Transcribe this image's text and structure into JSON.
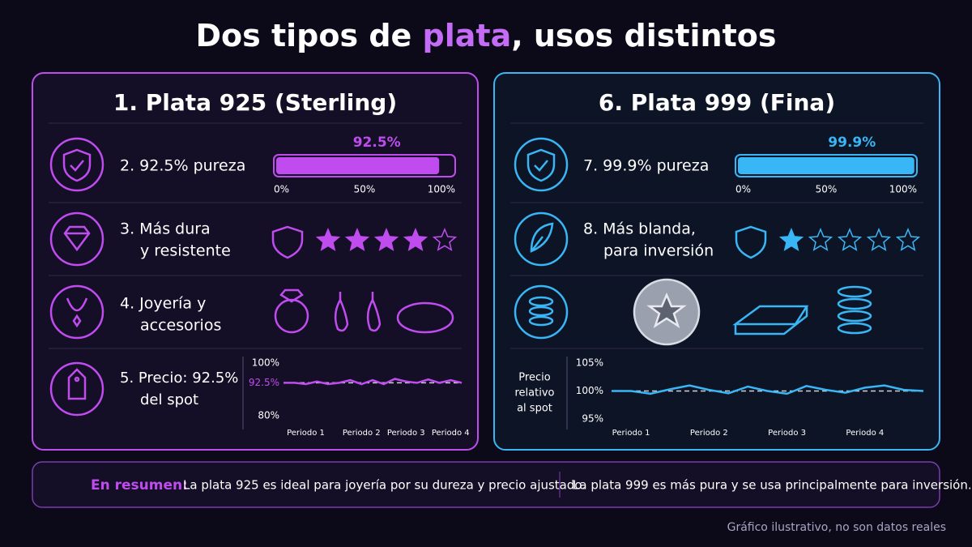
{
  "title": {
    "before": "Dos tipos de ",
    "highlight": "plata",
    "after": ", usos distintos"
  },
  "panels": [
    {
      "title": "1. Plata 925 (Sterling)",
      "color": "#c04cf0",
      "purity": {
        "label": "2. 92.5% pureza",
        "value": 92.5,
        "value_label": "92.5%",
        "xlim": [
          0,
          100
        ],
        "xticks": [
          {
            "value": 0,
            "label": "0%"
          },
          {
            "value": 50,
            "label": "50%"
          },
          {
            "value": 100,
            "label": "100%"
          }
        ]
      },
      "hardness": {
        "label": [
          "3. Más dura",
          "y resistente"
        ],
        "stars": 4,
        "max_stars": 5
      },
      "use": {
        "label": [
          "4. Joyería y",
          "accesorios"
        ]
      },
      "price": {
        "label": [
          "5. Precio: 92.5%",
          "del spot"
        ],
        "chart": {
          "type": "line",
          "ylim": [
            80,
            100
          ],
          "yticks": [
            {
              "value": 100,
              "label": "100%"
            },
            {
              "value": 80,
              "label": "80%"
            }
          ],
          "reference": {
            "value": 92.5,
            "label": "92.5%"
          },
          "x": [
            null,
            null,
            "Periodo 1",
            null,
            null,
            null,
            null,
            "Periodo 2",
            null,
            null,
            null,
            "Periodo 3",
            null,
            null,
            null,
            "Periodo 4",
            null
          ],
          "values": [
            92.5,
            92.5,
            92,
            93,
            92,
            92.5,
            93.5,
            92,
            93.5,
            92,
            94,
            93,
            92.5,
            93.8,
            92.5,
            93.5,
            92.5
          ]
        }
      }
    },
    {
      "title": "6. Plata 999 (Fina)",
      "color": "#38b6f5",
      "purity": {
        "label": "7. 99.9% pureza",
        "value": 99.9,
        "value_label": "99.9%",
        "xlim": [
          0,
          100
        ],
        "xticks": [
          {
            "value": 0,
            "label": "0%"
          },
          {
            "value": 50,
            "label": "50%"
          },
          {
            "value": 100,
            "label": "100%"
          }
        ]
      },
      "hardness": {
        "label": [
          "8. Más blanda,",
          "para inversión"
        ],
        "stars": 1,
        "max_stars": 5
      },
      "price": {
        "chart": {
          "type": "line",
          "ylabel": [
            "Precio",
            "relativo",
            "al spot"
          ],
          "ylim": [
            95,
            105
          ],
          "yticks": [
            {
              "value": 105,
              "label": "105%"
            },
            {
              "value": 100,
              "label": "100%"
            },
            {
              "value": 95,
              "label": "95%"
            }
          ],
          "reference": {
            "value": 100,
            "label": "100%"
          },
          "x": [
            null,
            "Periodo 1",
            null,
            null,
            null,
            "Periodo 2",
            null,
            null,
            null,
            "Periodo 3",
            null,
            null,
            null,
            "Periodo 4",
            null,
            null,
            null
          ],
          "values": [
            100,
            100,
            99.5,
            100.3,
            101,
            100.2,
            99.6,
            100.8,
            100,
            99.5,
            100.9,
            100.2,
            99.7,
            100.6,
            101,
            100.2,
            100
          ]
        }
      }
    }
  ],
  "summary": {
    "label": "En resumen:",
    "left": "La plata 925 es ideal para joyería por su dureza y precio ajustado.",
    "right": "La plata 999 es más pura y se usa principalmente para inversión."
  },
  "footnote": "Gráfico ilustrativo, no son datos reales"
}
